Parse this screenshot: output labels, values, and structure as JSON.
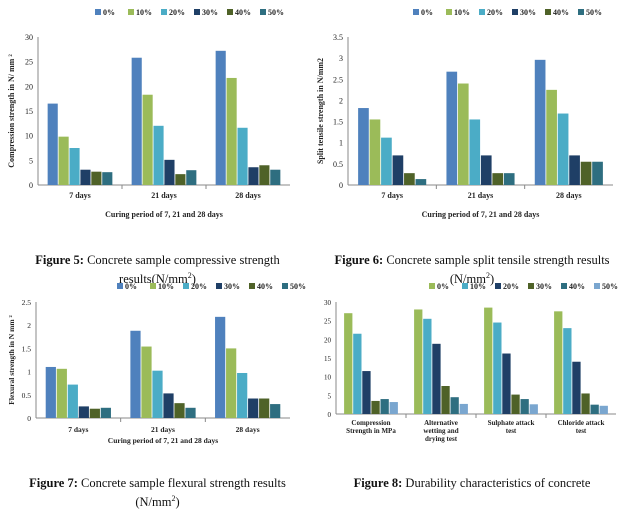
{
  "colors": {
    "0%": "#4f81bd",
    "10%": "#9bbb59",
    "20%": "#4bacc6",
    "30%": "#1f3f66",
    "40%": "#4f6228",
    "50%": "#2e6e80"
  },
  "chart_data": [
    {
      "id": "fig5",
      "type": "bar",
      "title": "",
      "categories": [
        "7 days",
        "21 days",
        "28 days"
      ],
      "series": [
        {
          "name": "0%",
          "values": [
            16.5,
            25.8,
            27.2
          ]
        },
        {
          "name": "10%",
          "values": [
            9.8,
            18.3,
            21.7
          ]
        },
        {
          "name": "20%",
          "values": [
            7.5,
            12.0,
            11.6
          ]
        },
        {
          "name": "30%",
          "values": [
            3.1,
            5.1,
            3.6
          ]
        },
        {
          "name": "40%",
          "values": [
            2.7,
            2.2,
            4.0
          ]
        },
        {
          "name": "50%",
          "values": [
            2.6,
            3.0,
            3.1
          ]
        }
      ],
      "xlabel": "Curing period of 7, 21 and 28 days",
      "ylabel": "Compression strength in N/ mm ²",
      "ylim": [
        0,
        30
      ],
      "yticks": [
        "0",
        "5",
        "10",
        "15",
        "20",
        "25",
        "30"
      ],
      "legend": "top-right",
      "grid": false
    },
    {
      "id": "fig6",
      "type": "bar",
      "title": "",
      "categories": [
        "7 days",
        "21 days",
        "28 days"
      ],
      "series": [
        {
          "name": "0%",
          "values": [
            1.82,
            2.68,
            2.96
          ]
        },
        {
          "name": "10%",
          "values": [
            1.55,
            2.4,
            2.25
          ]
        },
        {
          "name": "20%",
          "values": [
            1.12,
            1.55,
            1.69
          ]
        },
        {
          "name": "30%",
          "values": [
            0.7,
            0.7,
            0.7
          ]
        },
        {
          "name": "40%",
          "values": [
            0.28,
            0.28,
            0.55
          ]
        },
        {
          "name": "50%",
          "values": [
            0.14,
            0.28,
            0.55
          ]
        }
      ],
      "xlabel": "Curing period of 7, 21 and 28 days",
      "ylabel": "Split tensile strength in N/mm2",
      "ylim": [
        0,
        3.5
      ],
      "yticks": [
        "0",
        "0.5",
        "1",
        "1.5",
        "2",
        "2.5",
        "3",
        "3.5"
      ],
      "legend": "top-right",
      "grid": false
    },
    {
      "id": "fig7",
      "type": "bar",
      "title": "",
      "categories": [
        "7 days",
        "21 days",
        "28 days"
      ],
      "series": [
        {
          "name": "0%",
          "values": [
            1.1,
            1.88,
            2.18
          ]
        },
        {
          "name": "10%",
          "values": [
            1.06,
            1.54,
            1.5
          ]
        },
        {
          "name": "20%",
          "values": [
            0.72,
            1.02,
            0.97
          ]
        },
        {
          "name": "30%",
          "values": [
            0.25,
            0.53,
            0.42
          ]
        },
        {
          "name": "40%",
          "values": [
            0.2,
            0.32,
            0.42
          ]
        },
        {
          "name": "50%",
          "values": [
            0.22,
            0.22,
            0.3
          ]
        }
      ],
      "xlabel": "Curing period of 7, 21 and 28 days",
      "ylabel": "Flexural strength in N mm ²",
      "ylim": [
        0,
        2.5
      ],
      "yticks": [
        "0",
        "0.5",
        "1",
        "1.5",
        "2",
        "2.5"
      ],
      "legend": "top-right",
      "grid": false
    },
    {
      "id": "fig8",
      "type": "bar",
      "title": "",
      "categories": [
        "Compression Strength in MPa",
        "Alternative wetting and drying test",
        "Sulphate attack test",
        "Chloride attack test"
      ],
      "category_lines": [
        [
          "Compression",
          "Strength in MPa"
        ],
        [
          "Alternative",
          "wetting and",
          "drying test"
        ],
        [
          "Sulphate attack",
          "test"
        ],
        [
          "Chloride attack",
          "test"
        ]
      ],
      "series": [
        {
          "name": "0%",
          "values": [
            27.0,
            28.0,
            28.5,
            27.5
          ]
        },
        {
          "name": "10%",
          "values": [
            21.5,
            25.5,
            24.5,
            23.0
          ]
        },
        {
          "name": "20%",
          "values": [
            11.5,
            18.8,
            16.2,
            14.0
          ]
        },
        {
          "name": "30%",
          "values": [
            3.5,
            7.5,
            5.2,
            5.5
          ]
        },
        {
          "name": "40%",
          "values": [
            4.0,
            4.5,
            4.0,
            2.5
          ]
        },
        {
          "name": "50%",
          "values": [
            3.2,
            2.7,
            2.6,
            2.2
          ]
        }
      ],
      "series_colors": [
        "#9bbb59",
        "#4bacc6",
        "#1f3f66",
        "#4f6228",
        "#2e6e80",
        "#7aa6cf"
      ],
      "xlabel": "",
      "ylabel": "",
      "ylim": [
        0,
        30
      ],
      "yticks": [
        "0",
        "5",
        "10",
        "15",
        "20",
        "25",
        "30"
      ],
      "legend": "top-right",
      "grid": false
    }
  ],
  "captions": {
    "fig5": {
      "label": "Figure 5:",
      "text": "Concrete sample compressive strength results(N/mm",
      "sup": "2",
      "tail": ")"
    },
    "fig6": {
      "label": "Figure 6:",
      "text": "Concrete sample split tensile strength results (N/mm",
      "sup": "2",
      "tail": ")"
    },
    "fig7": {
      "label": "Figure 7:",
      "text": "Concrete sample flexural strength results (N/mm",
      "sup": "2",
      "tail": ")"
    },
    "fig8": {
      "label": "Figure 8:",
      "text": "Durability characteristics of concrete",
      "sup": "",
      "tail": ""
    }
  }
}
